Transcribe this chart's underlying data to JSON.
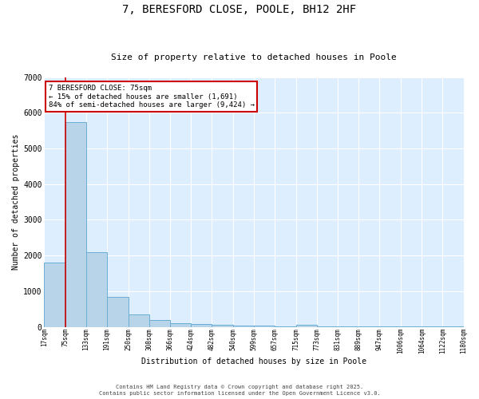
{
  "title": "7, BERESFORD CLOSE, POOLE, BH12 2HF",
  "subtitle": "Size of property relative to detached houses in Poole",
  "xlabel": "Distribution of detached houses by size in Poole",
  "ylabel": "Number of detached properties",
  "bar_color": "#b8d4e8",
  "bar_edge_color": "#6aaed6",
  "background_color": "#ddeeff",
  "grid_color": "#ffffff",
  "annotation_box_color": "#cc0000",
  "red_line_x": 75,
  "annotation_text_line1": "7 BERESFORD CLOSE: 75sqm",
  "annotation_text_line2": "← 15% of detached houses are smaller (1,691)",
  "annotation_text_line3": "84% of semi-detached houses are larger (9,424) →",
  "bins": [
    17,
    75,
    133,
    191,
    250,
    308,
    366,
    424,
    482,
    540,
    599,
    657,
    715,
    773,
    831,
    889,
    947,
    1006,
    1064,
    1122,
    1180
  ],
  "counts": [
    1800,
    5750,
    2100,
    830,
    340,
    185,
    110,
    70,
    50,
    38,
    28,
    20,
    60,
    5,
    4,
    3,
    3,
    3,
    3,
    3
  ],
  "ylim": [
    0,
    7000
  ],
  "yticks": [
    0,
    1000,
    2000,
    3000,
    4000,
    5000,
    6000,
    7000
  ],
  "footnote1": "Contains HM Land Registry data © Crown copyright and database right 2025.",
  "footnote2": "Contains public sector information licensed under the Open Government Licence v3.0."
}
